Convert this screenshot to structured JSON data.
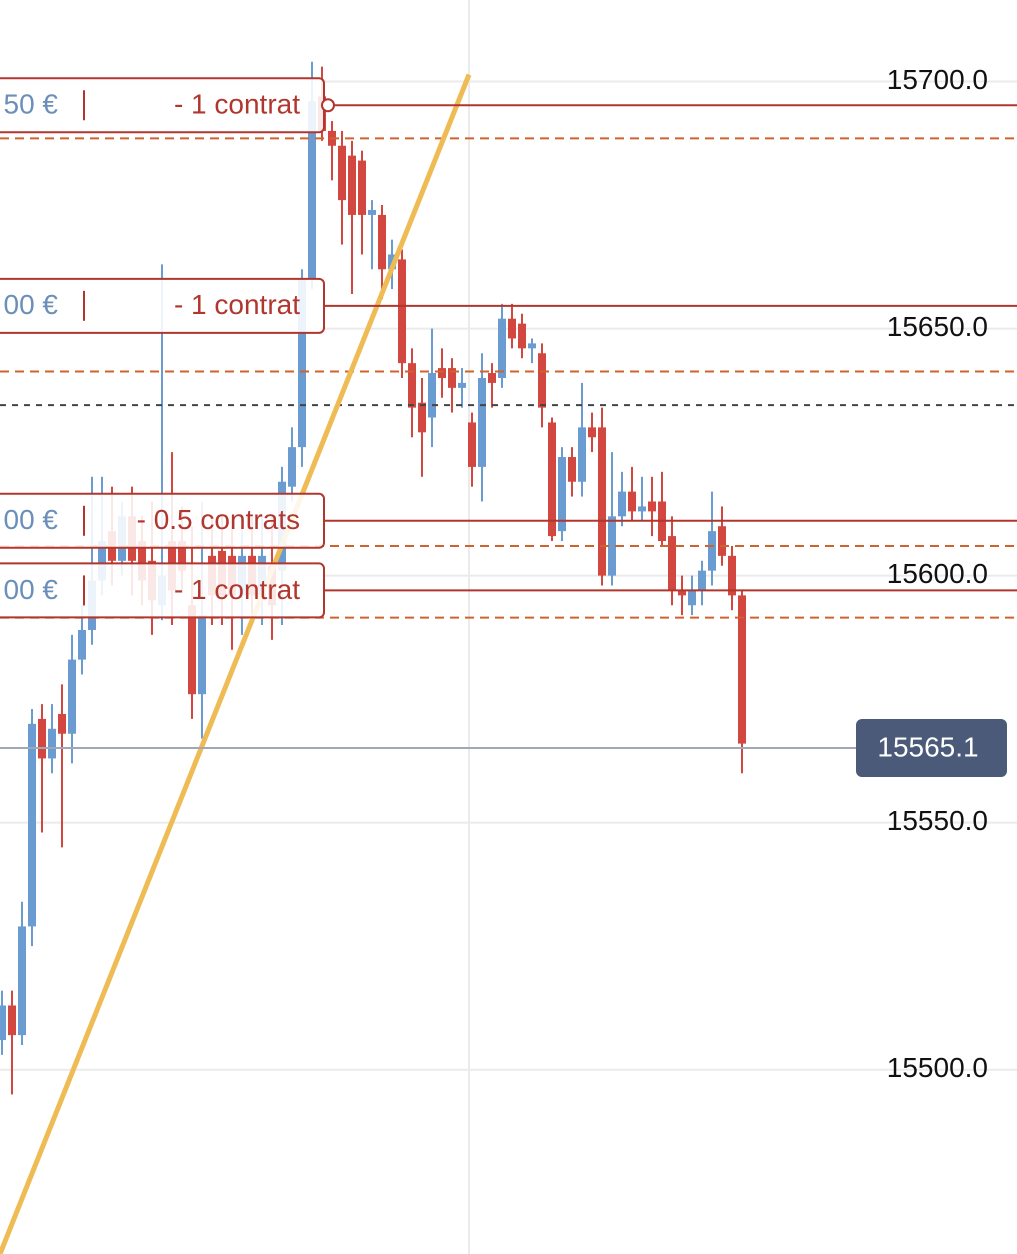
{
  "chart_data": {
    "type": "candlestick",
    "ylim": [
      15462.7,
      15716.5
    ],
    "yticks": [
      {
        "value": 15500,
        "label": "15500.0"
      },
      {
        "value": 15550,
        "label": "15550.0"
      },
      {
        "value": 15600,
        "label": "15600.0"
      },
      {
        "value": 15650,
        "label": "15650.0"
      },
      {
        "value": 15700,
        "label": "15700.0"
      }
    ],
    "grid": true,
    "up_color": "#6a9bd1",
    "down_color": "#d2473f",
    "open": [
      15506,
      15513,
      15507,
      15529,
      15571,
      15563,
      15572,
      15568,
      15583,
      15589,
      15599,
      15609,
      15603,
      15612,
      15607,
      15603,
      15594,
      15607,
      15607,
      15594,
      15576,
      15604,
      15605,
      15604,
      15596,
      15604,
      15596,
      15602,
      15601,
      15618,
      15626,
      15660,
      15697,
      15690,
      15687,
      15685,
      15684,
      15673,
      15673,
      15662,
      15664,
      15643,
      15635,
      15632,
      15642,
      15642,
      15638,
      15631,
      15622,
      15641,
      15640,
      15652,
      15651,
      15646,
      15645,
      15631,
      15609,
      15624,
      15619,
      15630,
      15630,
      15600,
      15612,
      15617,
      15613,
      15615,
      15615,
      15608,
      15597,
      15594,
      15597,
      15601,
      15610,
      15604,
      15596
    ],
    "high": [
      15516,
      15516,
      15534,
      15573,
      15574,
      15574,
      15578,
      15588,
      15594,
      15620,
      15620,
      15618,
      15615,
      15618,
      15612,
      15615,
      15663,
      15625,
      15614,
      15610,
      15615,
      15612,
      15612,
      15612,
      15612,
      15612,
      15612,
      15612,
      15622,
      15630,
      15662,
      15704,
      15703,
      15692,
      15690,
      15688,
      15686,
      15676,
      15675,
      15668,
      15666,
      15646,
      15640,
      15650,
      15646,
      15644,
      15642,
      15633,
      15645,
      15643,
      15655,
      15655,
      15653,
      15648,
      15647,
      15632,
      15626,
      15626,
      15639,
      15633,
      15634,
      15625,
      15621,
      15622,
      15620,
      15620,
      15621,
      15612,
      15600,
      15600,
      15603,
      15617,
      15614,
      15606,
      15597
    ],
    "low": [
      15503,
      15495,
      15505,
      15525,
      15548,
      15560,
      15545,
      15562,
      15580,
      15586,
      15596,
      15598,
      15600,
      15596,
      15594,
      15588,
      15591,
      15590,
      15597,
      15571,
      15567,
      15590,
      15590,
      15585,
      15588,
      15590,
      15590,
      15587,
      15590,
      15615,
      15622,
      15658,
      15688,
      15680,
      15667,
      15657,
      15665,
      15662,
      15656,
      15658,
      15640,
      15628,
      15620,
      15626,
      15636,
      15633,
      15634,
      15618,
      15615,
      15634,
      15638,
      15646,
      15644,
      15643,
      15630,
      15607,
      15607,
      15616,
      15616,
      15625,
      15598,
      15598,
      15610,
      15611,
      15611,
      15608,
      15606,
      15594,
      15592,
      15592,
      15594,
      15598,
      15602,
      15593,
      15560
    ],
    "close": [
      15513,
      15507,
      15529,
      15570,
      15563,
      15569,
      15568,
      15583,
      15589,
      15599,
      15607,
      15603,
      15612,
      15603,
      15599,
      15595,
      15600,
      15597,
      15601,
      15576,
      15592,
      15596,
      15596,
      15596,
      15604,
      15596,
      15604,
      15594,
      15619,
      15626,
      15660,
      15696,
      15690,
      15687,
      15676,
      15673,
      15673,
      15674,
      15662,
      15665,
      15643,
      15634,
      15629,
      15641,
      15640,
      15638,
      15639,
      15622,
      15640,
      15639,
      15652,
      15648,
      15646,
      15647,
      15634,
      15608,
      15624,
      15619,
      15630,
      15628,
      15600,
      15612,
      15617,
      15613,
      15614,
      15613,
      15607,
      15597,
      15596,
      15597,
      15601,
      15609,
      15604,
      15596,
      15566
    ],
    "trendline": {
      "color": "#efbb55",
      "x": [
        -0.2,
        46.7
      ],
      "values": [
        15462.7,
        15701.4
      ]
    },
    "orders": [
      {
        "price": 15695.2,
        "amount": "50 €",
        "quantity": "- 1 contrat"
      },
      {
        "price": 15654.6,
        "amount": "00 €",
        "quantity": "- 1 contrat"
      },
      {
        "price": 15611.1,
        "amount": "00 €",
        "quantity": "- 0.5 contrats"
      },
      {
        "price": 15597.0,
        "amount": "00 €",
        "quantity": "- 1 contrat"
      }
    ],
    "order_color": "#b0362e",
    "stop_levels": [
      15688.5,
      15641.3,
      15606.0,
      15591.5
    ],
    "stop_color": "#d0622e",
    "average_level": 15634.5,
    "last_price": 15565.1
  }
}
